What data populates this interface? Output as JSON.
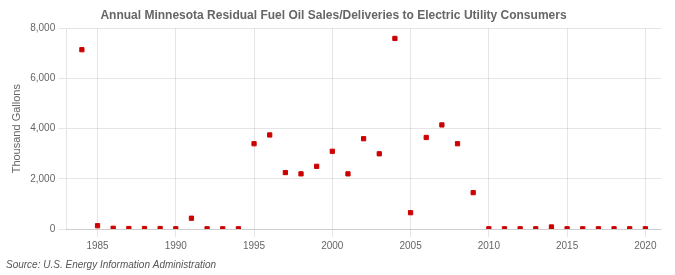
{
  "chart_data": {
    "type": "scatter",
    "title": "Annual Minnesota Residual Fuel Oil Sales/Deliveries to Electric Utility Consumers",
    "ylabel": "Thousand Gallons",
    "annotations": [
      "Source: U.S. Energy Information Administration"
    ],
    "x": [
      1984,
      1985,
      1986,
      1987,
      1988,
      1989,
      1990,
      1991,
      1992,
      1993,
      1994,
      1995,
      1996,
      1997,
      1998,
      1999,
      2000,
      2001,
      2002,
      2003,
      2004,
      2005,
      2006,
      2007,
      2008,
      2009,
      2010,
      2011,
      2012,
      2013,
      2014,
      2015,
      2016,
      2017,
      2018,
      2019,
      2020
    ],
    "values": [
      7150,
      130,
      30,
      20,
      20,
      20,
      10,
      430,
      10,
      10,
      10,
      3400,
      3750,
      2250,
      2200,
      2500,
      3100,
      2200,
      3600,
      3000,
      7600,
      650,
      3650,
      4150,
      3400,
      1450,
      10,
      10,
      10,
      10,
      80,
      10,
      10,
      10,
      10,
      10,
      10
    ],
    "color": "#cc0000",
    "marker": "square",
    "xlim": [
      1983,
      2021
    ],
    "xticks": [
      1985,
      1990,
      1995,
      2000,
      2005,
      2010,
      2015,
      2020
    ],
    "ylim": [
      0,
      8000
    ],
    "yticks": [
      0,
      {
        "value": 2000,
        "label": "2,000"
      },
      {
        "value": 4000,
        "label": "4,000"
      },
      {
        "value": 6000,
        "label": "6,000"
      },
      {
        "value": 8000,
        "label": "8,000"
      }
    ],
    "grid": true
  }
}
